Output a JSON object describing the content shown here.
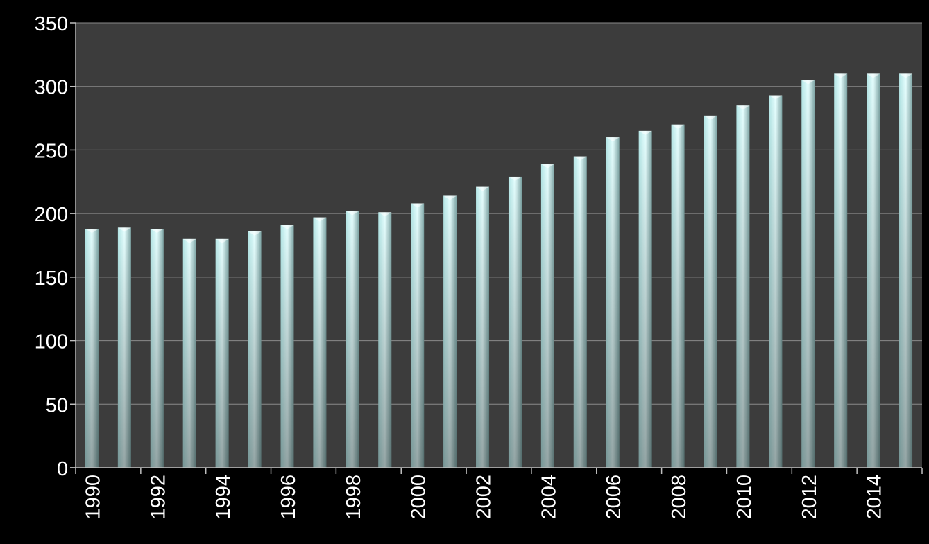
{
  "colors": {
    "page_background": "#000000",
    "plot_background": "#3c3c3c",
    "gridline": "#8a8a8a",
    "axis": "#bfbfbf",
    "bar_light": "#e6ffff",
    "bar_mid": "#b4e6e6",
    "bar_dark": "#7fa6a6",
    "text": "#ffffff"
  },
  "chart_data": {
    "type": "bar",
    "title": "",
    "xlabel": "",
    "ylabel": "",
    "categories": [
      "1990",
      "1991",
      "1992",
      "1993",
      "1994",
      "1995",
      "1996",
      "1997",
      "1998",
      "1999",
      "2000",
      "2001",
      "2002",
      "2003",
      "2004",
      "2005",
      "2006",
      "2007",
      "2008",
      "2009",
      "2010",
      "2011",
      "2012",
      "2013",
      "2014",
      "2015"
    ],
    "x_tick_labels": [
      "1990",
      "1992",
      "1994",
      "1996",
      "1998",
      "2000",
      "2002",
      "2004",
      "2006",
      "2008",
      "2010",
      "2012",
      "2014"
    ],
    "values": [
      188,
      189,
      188,
      180,
      180,
      186,
      191,
      197,
      202,
      201,
      208,
      214,
      221,
      229,
      239,
      245,
      260,
      265,
      270,
      277,
      285,
      293,
      305,
      310,
      310,
      310
    ],
    "ylim": [
      0,
      350
    ],
    "y_ticks": [
      0,
      50,
      100,
      150,
      200,
      250,
      300,
      350
    ],
    "grid": true,
    "legend": "none"
  }
}
